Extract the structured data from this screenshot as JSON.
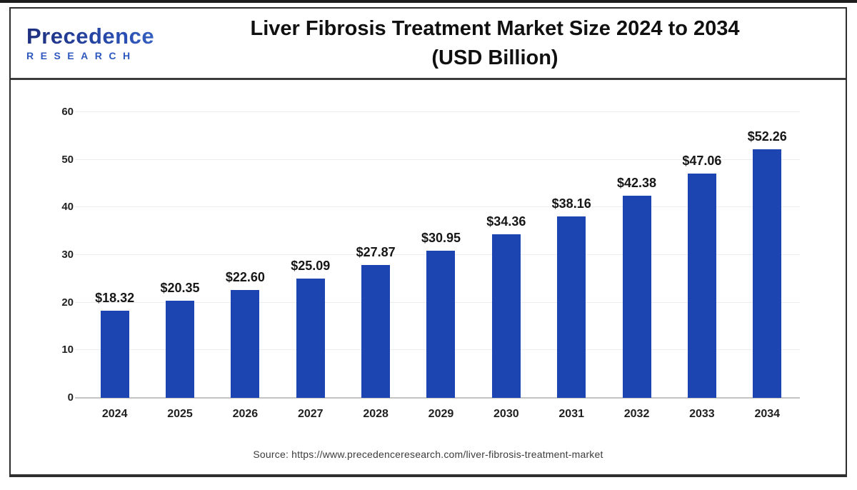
{
  "header": {
    "logo_line1": "Precedence",
    "logo_line2": "RESEARCH",
    "title_line1": "Liver Fibrosis Treatment Market Size 2024 to 2034",
    "title_line2": "(USD Billion)"
  },
  "footer": {
    "source": "Source: https://www.precedenceresearch.com/liver-fibrosis-treatment-market"
  },
  "chart_data": {
    "type": "bar",
    "title": "Liver Fibrosis Treatment Market Size 2024 to 2034 (USD Billion)",
    "categories": [
      "2024",
      "2025",
      "2026",
      "2027",
      "2028",
      "2029",
      "2030",
      "2031",
      "2032",
      "2033",
      "2034"
    ],
    "values": [
      18.32,
      20.35,
      22.6,
      25.09,
      27.87,
      30.95,
      34.36,
      38.16,
      42.38,
      47.06,
      52.26
    ],
    "labels": [
      "$18.32",
      "$20.35",
      "$22.60",
      "$25.09",
      "$27.87",
      "$30.95",
      "$34.36",
      "$38.16",
      "$42.38",
      "$47.06",
      "$52.26"
    ],
    "xlabel": "",
    "ylabel": "",
    "ylim": [
      0,
      60
    ],
    "yticks": [
      0,
      10,
      20,
      30,
      40,
      50,
      60
    ],
    "grid": "horizontal-light",
    "legend": "none",
    "bar_color": "#1c45b2"
  }
}
